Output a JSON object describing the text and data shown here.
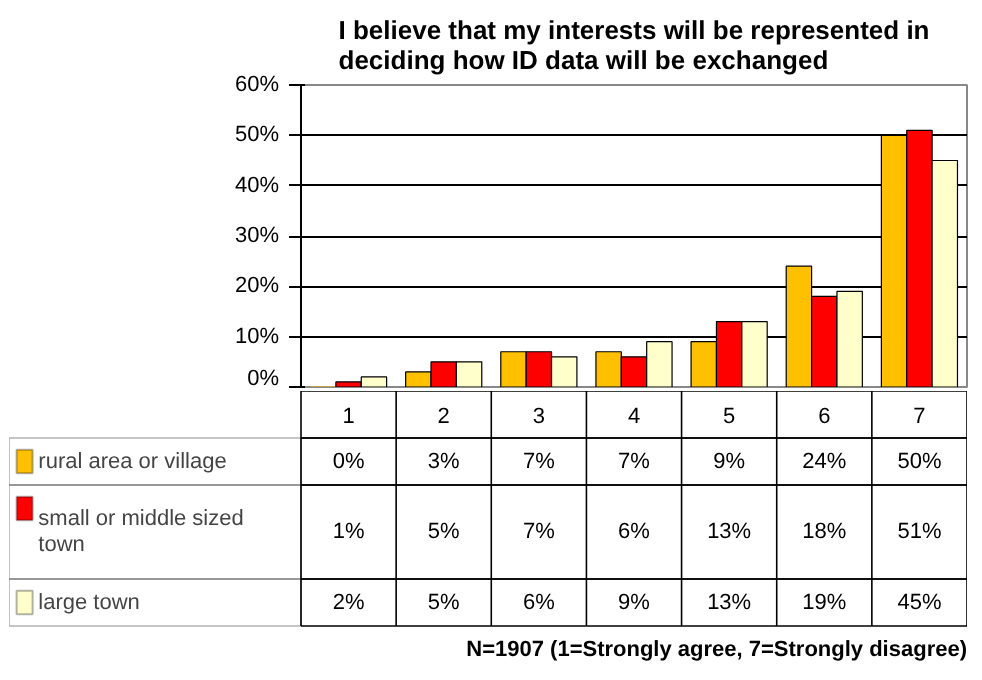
{
  "chart_data": {
    "type": "bar",
    "title": "I believe that my interests will be represented in\ndeciding how ID data will be exchanged",
    "categories": [
      "1",
      "2",
      "3",
      "4",
      "5",
      "6",
      "7"
    ],
    "series": [
      {
        "name": "rural area or village",
        "color": "#ffc000",
        "values": [
          0,
          3,
          7,
          7,
          9,
          24,
          50
        ],
        "value_labels": [
          "0%",
          "3%",
          "7%",
          "7%",
          "9%",
          "24%",
          "50%"
        ]
      },
      {
        "name": "small or middle sized town",
        "color": "#ff0000",
        "values": [
          1,
          5,
          7,
          6,
          13,
          18,
          51
        ],
        "value_labels": [
          "1%",
          "5%",
          "7%",
          "6%",
          "13%",
          "18%",
          "51%"
        ]
      },
      {
        "name": "large town",
        "color": "#ffffcc",
        "values": [
          2,
          5,
          6,
          9,
          13,
          19,
          45
        ],
        "value_labels": [
          "2%",
          "5%",
          "6%",
          "9%",
          "13%",
          "19%",
          "45%"
        ]
      }
    ],
    "ylim": [
      0,
      60
    ],
    "yticks": [
      {
        "value": 0,
        "label": "0%"
      },
      {
        "value": 10,
        "label": "10%"
      },
      {
        "value": 20,
        "label": "20%"
      },
      {
        "value": 30,
        "label": "30%"
      },
      {
        "value": 40,
        "label": "40%"
      },
      {
        "value": 50,
        "label": "50%"
      },
      {
        "value": 60,
        "label": "60%"
      }
    ],
    "grid": "y",
    "legend": "bottom left",
    "annotations": [
      "N=1907 (1=Strongly agree, 7=Strongly disagree)"
    ]
  }
}
